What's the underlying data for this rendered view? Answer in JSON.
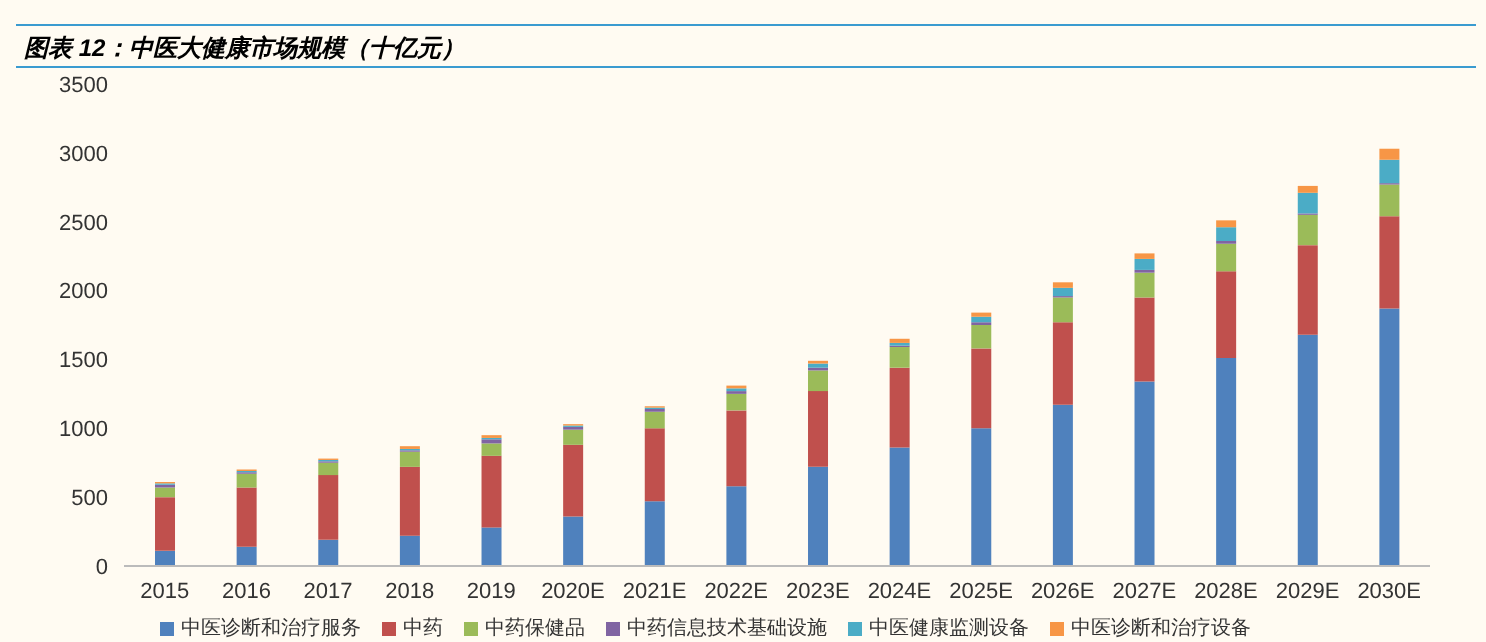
{
  "chart_data": {
    "type": "bar",
    "title": "图表 12：中医大健康市场规模（十亿元）",
    "stacked": true,
    "grid": false,
    "legend": "bottom",
    "categories": [
      "2015",
      "2016",
      "2017",
      "2018",
      "2019",
      "2020E",
      "2021E",
      "2022E",
      "2023E",
      "2024E",
      "2025E",
      "2026E",
      "2027E",
      "2028E",
      "2029E",
      "2030E"
    ],
    "ylim": [
      0,
      3500
    ],
    "yticks": [
      0,
      500,
      1000,
      1500,
      2000,
      2500,
      3000,
      3500
    ],
    "series": [
      {
        "name": "中医诊断和治疗服务",
        "color": "#4f81bd",
        "values": [
          110,
          140,
          190,
          220,
          280,
          360,
          470,
          580,
          720,
          860,
          1000,
          1170,
          1340,
          1510,
          1680,
          1870
        ]
      },
      {
        "name": "中药",
        "color": "#c0504d",
        "values": [
          390,
          430,
          470,
          500,
          520,
          520,
          530,
          550,
          550,
          580,
          580,
          600,
          610,
          630,
          650,
          670
        ]
      },
      {
        "name": "中药保健品",
        "color": "#9bbb59",
        "values": [
          70,
          100,
          90,
          110,
          90,
          110,
          120,
          120,
          150,
          150,
          170,
          180,
          180,
          200,
          220,
          230
        ]
      },
      {
        "name": "中药信息技术基础设施",
        "color": "#8064a2",
        "values": [
          20,
          10,
          10,
          10,
          30,
          20,
          20,
          20,
          20,
          10,
          20,
          10,
          20,
          20,
          10,
          10
        ]
      },
      {
        "name": "中医健康监测设备",
        "color": "#4bacc6",
        "values": [
          10,
          10,
          10,
          10,
          10,
          10,
          10,
          20,
          30,
          20,
          40,
          60,
          80,
          100,
          150,
          170
        ]
      },
      {
        "name": "中医诊断和治疗设备",
        "color": "#f79646",
        "values": [
          10,
          10,
          10,
          20,
          20,
          10,
          10,
          20,
          20,
          30,
          30,
          40,
          40,
          50,
          50,
          80
        ]
      }
    ]
  }
}
